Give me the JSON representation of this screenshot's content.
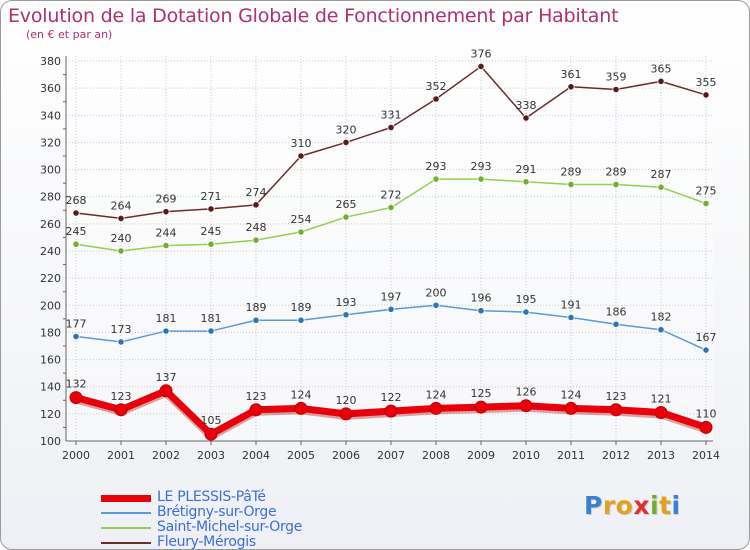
{
  "title": "Evolution de la Dotation Globale de Fonctionnement par Habitant",
  "subtitle": "(en € et par an)",
  "logo": {
    "letters": [
      "P",
      "r",
      "o",
      "x",
      "i",
      "t",
      "i"
    ]
  },
  "chart_data": {
    "type": "line",
    "title": "Evolution de la Dotation Globale de Fonctionnement par Habitant",
    "ylabel": "(en € et par an)",
    "xlabel": "",
    "ylim": [
      100,
      380
    ],
    "y_ticks": [
      "100",
      "120",
      "140",
      "160",
      "180",
      "200",
      "220",
      "240",
      "260",
      "280",
      "300",
      "320",
      "340",
      "360",
      "380"
    ],
    "grid": true,
    "legend_position": "bottom-left",
    "categories": [
      "2000",
      "2001",
      "2002",
      "2003",
      "2004",
      "2005",
      "2006",
      "2007",
      "2008",
      "2009",
      "2010",
      "2011",
      "2012",
      "2013",
      "2014"
    ],
    "series": [
      {
        "name": "LE PLESSIS-PâTé",
        "color": "#e8000a",
        "marker": "#e8000a",
        "values": [
          132,
          123,
          137,
          105,
          123,
          124,
          120,
          122,
          124,
          125,
          126,
          124,
          123,
          121,
          110
        ],
        "labels": [
          "132",
          "123",
          "137",
          "105",
          "123",
          "124",
          "120",
          "122",
          "124",
          "125",
          "126",
          "124",
          "123",
          "121",
          "110"
        ],
        "thick": true
      },
      {
        "name": "Brétigny-sur-Orge",
        "color": "#5a9bd5",
        "marker": "#2e75b6",
        "values": [
          177,
          173,
          181,
          181,
          189,
          189,
          193,
          197,
          200,
          196,
          195,
          191,
          186,
          182,
          167
        ],
        "labels": [
          "177",
          "173",
          "181",
          "181",
          "189",
          "189",
          "193",
          "197",
          "200",
          "196",
          "195",
          "191",
          "186",
          "182",
          "167"
        ],
        "thick": false
      },
      {
        "name": "Saint-Michel-sur-Orge",
        "color": "#92d050",
        "marker": "#70b030",
        "values": [
          245,
          240,
          244,
          245,
          248,
          254,
          265,
          272,
          293,
          293,
          291,
          289,
          289,
          287,
          275
        ],
        "labels": [
          "245",
          "240",
          "244",
          "245",
          "248",
          "254",
          "265",
          "272",
          "293",
          "293",
          "291",
          "289",
          "289",
          "287",
          "275"
        ],
        "thick": false
      },
      {
        "name": "Fleury-Mérogis",
        "color": "#6b2b2b",
        "marker": "#5a1a1a",
        "values": [
          268,
          264,
          269,
          271,
          274,
          310,
          320,
          331,
          352,
          376,
          338,
          361,
          359,
          365,
          355
        ],
        "labels": [
          "268",
          "264",
          "269",
          "271",
          "274",
          "310",
          "320",
          "331",
          "352",
          "376",
          "338",
          "361",
          "359",
          "365",
          "355"
        ],
        "thick": false
      }
    ]
  }
}
